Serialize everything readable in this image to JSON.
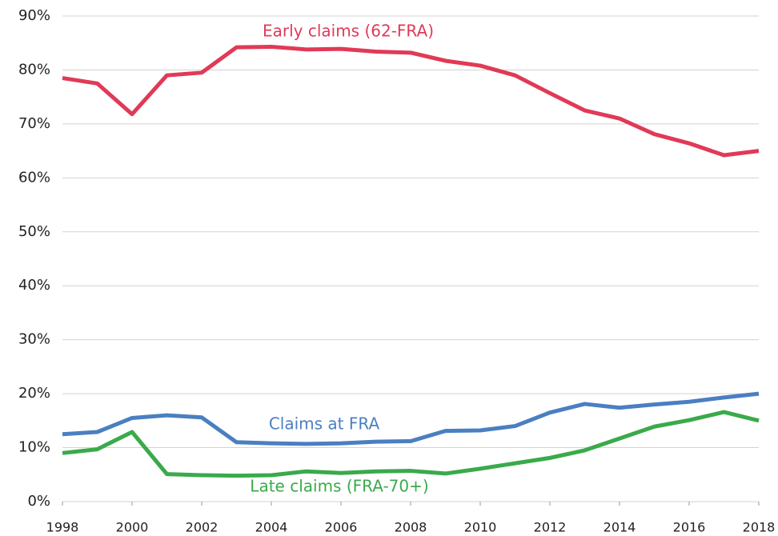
{
  "chart_data": {
    "type": "line",
    "x": [
      1998,
      1999,
      2000,
      2001,
      2002,
      2003,
      2004,
      2005,
      2006,
      2007,
      2008,
      2009,
      2010,
      2011,
      2012,
      2013,
      2014,
      2015,
      2016,
      2017,
      2018
    ],
    "series": [
      {
        "name": "Early claims (62-FRA)",
        "color": "#e03a57",
        "values": [
          78.5,
          77.5,
          71.8,
          79,
          79.5,
          84.2,
          84.3,
          83.8,
          83.9,
          83.4,
          83.2,
          81.7,
          80.8,
          79,
          75.7,
          72.5,
          71,
          68.1,
          66.4,
          64.2,
          65
        ]
      },
      {
        "name": "Claims at FRA",
        "color": "#4a7fc1",
        "values": [
          12.5,
          12.9,
          15.5,
          16,
          15.6,
          11,
          10.8,
          10.7,
          10.8,
          11.1,
          11.2,
          13.1,
          13.2,
          14,
          16.5,
          18.1,
          17.4,
          18,
          18.5,
          19.3,
          20
        ]
      },
      {
        "name": "Late claims (FRA-70+)",
        "color": "#3aaa4a",
        "values": [
          9,
          9.7,
          12.9,
          5.1,
          4.9,
          4.8,
          4.9,
          5.6,
          5.3,
          5.6,
          5.7,
          5.2,
          6.1,
          7.1,
          8.1,
          9.5,
          11.7,
          13.9,
          15.1,
          16.6,
          15
        ]
      }
    ],
    "xlim": [
      1998,
      2018
    ],
    "xticks": [
      1998,
      2000,
      2002,
      2004,
      2006,
      2008,
      2010,
      2012,
      2014,
      2016,
      2018
    ],
    "ylim": [
      0,
      90
    ],
    "yticks": [
      {
        "value": 0,
        "label": "0%"
      },
      {
        "value": 10,
        "label": "10%"
      },
      {
        "value": 20,
        "label": "20%"
      },
      {
        "value": 30,
        "label": "30%"
      },
      {
        "value": 40,
        "label": "40%"
      },
      {
        "value": 50,
        "label": "50%"
      },
      {
        "value": 60,
        "label": "60%"
      },
      {
        "value": 70,
        "label": "70%"
      },
      {
        "value": 80,
        "label": "80%"
      },
      {
        "value": 90,
        "label": "90%"
      }
    ],
    "grid": true
  }
}
